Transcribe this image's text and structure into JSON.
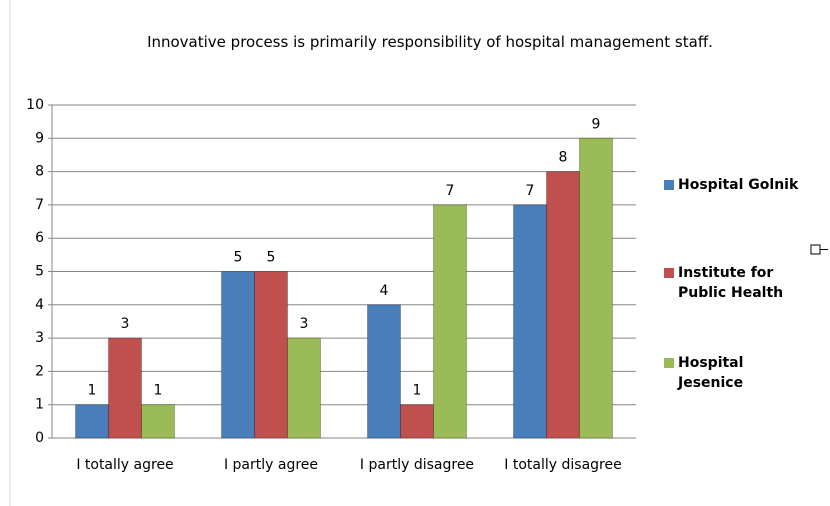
{
  "chart_data": {
    "type": "bar",
    "title": "Innovative process is primarily responsibility  of hospital management staff.",
    "categories": [
      "I totally agree",
      "I partly agree",
      "I partly disagree",
      "I totally disagree"
    ],
    "series": [
      {
        "name": "Hospital Golnik",
        "color": "#4a7ebb",
        "values": [
          1,
          5,
          4,
          7
        ]
      },
      {
        "name": "Institute for Public Health",
        "color": "#c0504d",
        "values": [
          3,
          5,
          1,
          8
        ]
      },
      {
        "name": "Hospital Jesenice",
        "color": "#9bbb59",
        "values": [
          1,
          3,
          7,
          9
        ]
      }
    ],
    "ylim": [
      0,
      10
    ],
    "yticks": [
      0,
      1,
      2,
      3,
      4,
      5,
      6,
      7,
      8,
      9,
      10
    ],
    "grid": true,
    "legend": "right"
  }
}
